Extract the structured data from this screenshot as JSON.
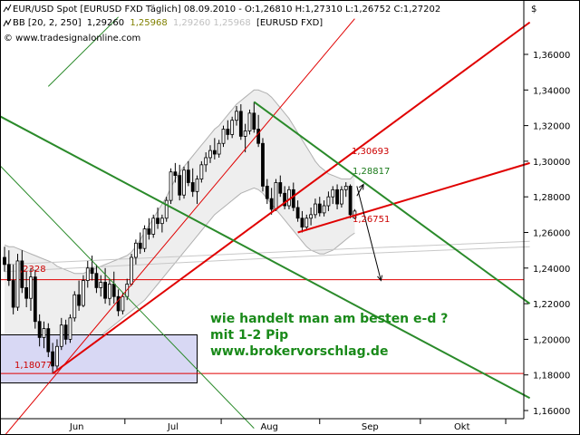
{
  "header": {
    "line1": "EUR/USD Spot [EURUSD FXD  Täglich] 08.09.2010 - O:1,26810 H:1,27310 L:1,26752 C:1,27202",
    "bb_prefix": "BB [20, 2, 250]",
    "bb_v1": "1,29260",
    "bb_v2": "1,25968",
    "bb_v3": "1,29260 1,25968",
    "bb_suffix": "[EURUSD FXD]",
    "copyright": "© www.tradesignalonline.com",
    "currency_symbol": "$"
  },
  "annotation": {
    "line1": "wie handelt man am besten e-d ?",
    "line2": "mit 1-2 Pip",
    "line3": "www.brokervorschlag.de"
  },
  "level_labels": {
    "low": "1,18077",
    "left_level": ",2328",
    "high1": "1,30693",
    "high2": "1,28817",
    "low2": "1,26751"
  },
  "colors": {
    "up_candle": "#ffffff",
    "down_candle": "#000000",
    "wick": "#000000",
    "bollinger": "#b0b0b0",
    "bollinger_fill": "#eeeeee",
    "red_trend": "#e00000",
    "green_trend": "#2a8a2a",
    "box_fill": "#d8d8f4",
    "note": "#1a8a1a"
  },
  "chart_data": {
    "type": "candlestick",
    "title": "EUR/USD Spot [EURUSD FXD Täglich]",
    "ylim": [
      1.15,
      1.38
    ],
    "y_ticks": [
      1.16,
      1.18,
      1.2,
      1.22,
      1.24,
      1.26,
      1.28,
      1.3,
      1.32,
      1.34,
      1.36
    ],
    "y_tick_labels": [
      "1,16000",
      "1,18000",
      "1,20000",
      "1,22000",
      "1,24000",
      "1,26000",
      "1,28000",
      "1,30000",
      "1,32000",
      "1,34000",
      "1,36000"
    ],
    "x_months": [
      "Jun",
      "Jul",
      "Aug",
      "Sep",
      "Okt"
    ],
    "last_close": 1.27202,
    "candles": [
      [
        1.246,
        1.252,
        1.238,
        1.242
      ],
      [
        1.242,
        1.25,
        1.23,
        1.233
      ],
      [
        1.233,
        1.242,
        1.214,
        1.218
      ],
      [
        1.218,
        1.248,
        1.216,
        1.244
      ],
      [
        1.244,
        1.25,
        1.226,
        1.229
      ],
      [
        1.229,
        1.238,
        1.218,
        1.223
      ],
      [
        1.223,
        1.24,
        1.216,
        1.235
      ],
      [
        1.235,
        1.239,
        1.206,
        1.21
      ],
      [
        1.21,
        1.214,
        1.196,
        1.201
      ],
      [
        1.201,
        1.21,
        1.195,
        1.206
      ],
      [
        1.206,
        1.209,
        1.19,
        1.193
      ],
      [
        1.193,
        1.198,
        1.1808,
        1.185
      ],
      [
        1.185,
        1.2,
        1.183,
        1.196
      ],
      [
        1.196,
        1.212,
        1.194,
        1.208
      ],
      [
        1.208,
        1.211,
        1.197,
        1.2
      ],
      [
        1.2,
        1.214,
        1.198,
        1.212
      ],
      [
        1.212,
        1.227,
        1.21,
        1.225
      ],
      [
        1.225,
        1.233,
        1.216,
        1.219
      ],
      [
        1.219,
        1.236,
        1.218,
        1.233
      ],
      [
        1.233,
        1.244,
        1.229,
        1.24
      ],
      [
        1.24,
        1.247,
        1.233,
        1.237
      ],
      [
        1.237,
        1.242,
        1.226,
        1.229
      ],
      [
        1.229,
        1.236,
        1.224,
        1.232
      ],
      [
        1.232,
        1.24,
        1.22,
        1.223
      ],
      [
        1.223,
        1.234,
        1.219,
        1.231
      ],
      [
        1.231,
        1.238,
        1.22,
        1.224
      ],
      [
        1.224,
        1.228,
        1.213,
        1.216
      ],
      [
        1.216,
        1.226,
        1.214,
        1.224
      ],
      [
        1.224,
        1.234,
        1.222,
        1.231
      ],
      [
        1.231,
        1.248,
        1.23,
        1.246
      ],
      [
        1.246,
        1.256,
        1.242,
        1.254
      ],
      [
        1.254,
        1.26,
        1.248,
        1.251
      ],
      [
        1.251,
        1.264,
        1.249,
        1.262
      ],
      [
        1.262,
        1.268,
        1.256,
        1.259
      ],
      [
        1.259,
        1.27,
        1.257,
        1.268
      ],
      [
        1.268,
        1.274,
        1.262,
        1.265
      ],
      [
        1.265,
        1.27,
        1.26,
        1.268
      ],
      [
        1.268,
        1.28,
        1.266,
        1.278
      ],
      [
        1.278,
        1.296,
        1.276,
        1.294
      ],
      [
        1.294,
        1.299,
        1.288,
        1.292
      ],
      [
        1.292,
        1.298,
        1.278,
        1.281
      ],
      [
        1.281,
        1.297,
        1.279,
        1.295
      ],
      [
        1.295,
        1.3,
        1.286,
        1.288
      ],
      [
        1.288,
        1.296,
        1.28,
        1.283
      ],
      [
        1.283,
        1.292,
        1.276,
        1.29
      ],
      [
        1.29,
        1.3,
        1.288,
        1.298
      ],
      [
        1.298,
        1.305,
        1.294,
        1.302
      ],
      [
        1.302,
        1.309,
        1.299,
        1.306
      ],
      [
        1.306,
        1.313,
        1.301,
        1.304
      ],
      [
        1.304,
        1.312,
        1.302,
        1.31
      ],
      [
        1.31,
        1.32,
        1.308,
        1.318
      ],
      [
        1.318,
        1.323,
        1.312,
        1.315
      ],
      [
        1.315,
        1.325,
        1.313,
        1.323
      ],
      [
        1.323,
        1.331,
        1.32,
        1.328
      ],
      [
        1.328,
        1.332,
        1.312,
        1.314
      ],
      [
        1.314,
        1.321,
        1.305,
        1.317
      ],
      [
        1.317,
        1.329,
        1.315,
        1.327
      ],
      [
        1.327,
        1.3333,
        1.316,
        1.318
      ],
      [
        1.318,
        1.326,
        1.308,
        1.31
      ],
      [
        1.31,
        1.313,
        1.283,
        1.286
      ],
      [
        1.286,
        1.29,
        1.276,
        1.279
      ],
      [
        1.279,
        1.285,
        1.27,
        1.273
      ],
      [
        1.273,
        1.29,
        1.272,
        1.288
      ],
      [
        1.288,
        1.292,
        1.28,
        1.282
      ],
      [
        1.282,
        1.286,
        1.273,
        1.275
      ],
      [
        1.275,
        1.286,
        1.273,
        1.284
      ],
      [
        1.284,
        1.288,
        1.272,
        1.274
      ],
      [
        1.274,
        1.278,
        1.266,
        1.268
      ],
      [
        1.268,
        1.272,
        1.26,
        1.263
      ],
      [
        1.263,
        1.27,
        1.261,
        1.268
      ],
      [
        1.268,
        1.274,
        1.264,
        1.27
      ],
      [
        1.27,
        1.279,
        1.268,
        1.276
      ],
      [
        1.276,
        1.28,
        1.269,
        1.271
      ],
      [
        1.271,
        1.278,
        1.269,
        1.275
      ],
      [
        1.275,
        1.283,
        1.272,
        1.28
      ],
      [
        1.28,
        1.286,
        1.276,
        1.284
      ],
      [
        1.284,
        1.287,
        1.273,
        1.276
      ],
      [
        1.276,
        1.286,
        1.274,
        1.284
      ],
      [
        1.284,
        1.2882,
        1.28,
        1.286
      ],
      [
        1.286,
        1.287,
        1.268,
        1.27
      ],
      [
        1.2681,
        1.2731,
        1.26752,
        1.27202
      ]
    ],
    "bollinger": {
      "upper": [
        1.253,
        1.252,
        1.252,
        1.251,
        1.25,
        1.249,
        1.248,
        1.247,
        1.246,
        1.245,
        1.244,
        1.243,
        1.241,
        1.24,
        1.239,
        1.238,
        1.237,
        1.237,
        1.237,
        1.238,
        1.239,
        1.24,
        1.241,
        1.242,
        1.243,
        1.244,
        1.245,
        1.246,
        1.247,
        1.249,
        1.252,
        1.256,
        1.26,
        1.264,
        1.268,
        1.272,
        1.276,
        1.28,
        1.285,
        1.29,
        1.294,
        1.297,
        1.3,
        1.303,
        1.306,
        1.309,
        1.312,
        1.315,
        1.318,
        1.32,
        1.323,
        1.326,
        1.329,
        1.332,
        1.334,
        1.336,
        1.338,
        1.34,
        1.34,
        1.339,
        1.338,
        1.336,
        1.333,
        1.33,
        1.327,
        1.324,
        1.32,
        1.316,
        1.312,
        1.308,
        1.304,
        1.3,
        1.297,
        1.295,
        1.293,
        1.292,
        1.291,
        1.29,
        1.29,
        1.29,
        1.2926
      ],
      "lower": [
        1.19,
        1.19,
        1.191,
        1.192,
        1.193,
        1.193,
        1.194,
        1.193,
        1.191,
        1.189,
        1.188,
        1.186,
        1.185,
        1.186,
        1.187,
        1.188,
        1.19,
        1.192,
        1.194,
        1.196,
        1.198,
        1.2,
        1.202,
        1.204,
        1.206,
        1.208,
        1.21,
        1.212,
        1.214,
        1.216,
        1.218,
        1.22,
        1.222,
        1.225,
        1.228,
        1.231,
        1.234,
        1.237,
        1.24,
        1.243,
        1.246,
        1.249,
        1.252,
        1.255,
        1.258,
        1.261,
        1.264,
        1.267,
        1.27,
        1.272,
        1.274,
        1.276,
        1.278,
        1.28,
        1.282,
        1.283,
        1.284,
        1.285,
        1.284,
        1.282,
        1.279,
        1.276,
        1.273,
        1.27,
        1.267,
        1.264,
        1.261,
        1.258,
        1.255,
        1.252,
        1.25,
        1.249,
        1.248,
        1.248,
        1.249,
        1.25,
        1.252,
        1.254,
        1.256,
        1.258,
        1.25968
      ]
    },
    "lines": {
      "long_ma_1": [
        [
          0,
          1.242
        ],
        [
          80,
          1.251
        ],
        [
          120,
          1.255
        ]
      ],
      "long_ma_2": [
        [
          0,
          1.238
        ],
        [
          80,
          1.248
        ],
        [
          120,
          1.252
        ]
      ]
    },
    "trend_lines": [
      {
        "color": "red",
        "width": 1,
        "points": [
          [
            -2,
            1.14
          ],
          [
            80,
            1.38
          ]
        ]
      },
      {
        "color": "red",
        "width": 2,
        "points": [
          [
            11,
            1.1808
          ],
          [
            120,
            1.378
          ]
        ]
      },
      {
        "color": "red",
        "width": 2,
        "points": [
          [
            67,
            1.26
          ],
          [
            120,
            1.299
          ]
        ]
      },
      {
        "color": "green",
        "width": 2,
        "points": [
          [
            -2,
            1.3265
          ],
          [
            120,
            1.167
          ]
        ]
      },
      {
        "color": "green",
        "width": 2,
        "points": [
          [
            57,
            1.3333
          ],
          [
            120,
            1.22
          ]
        ]
      },
      {
        "color": "green",
        "width": 1,
        "points": [
          [
            -2,
            1.3
          ],
          [
            57,
            1.15
          ]
        ]
      },
      {
        "color": "green",
        "width": 1,
        "points": [
          [
            10,
            1.342
          ],
          [
            26,
            1.381
          ]
        ]
      }
    ],
    "horizontal_levels": [
      {
        "color": "red",
        "value": 1.2335
      },
      {
        "color": "red",
        "value": 1.1808
      }
    ],
    "shaded_box": {
      "x1": -2,
      "x2": 44,
      "y_top": 1.2025,
      "y_bottom": 1.1755
    },
    "arrows": [
      {
        "from": [
          80.5,
          1.286
        ],
        "to": [
          86,
          1.233
        ]
      },
      {
        "from": [
          80.5,
          1.2805
        ],
        "to": [
          82,
          1.287
        ]
      }
    ]
  }
}
